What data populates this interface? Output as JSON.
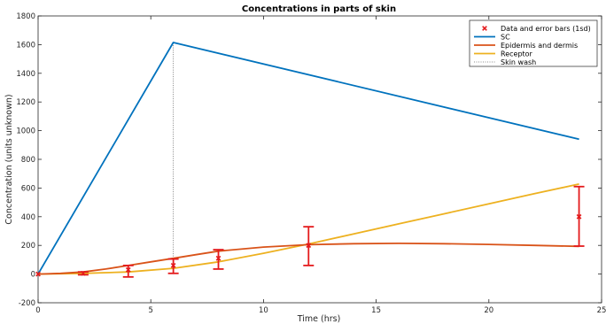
{
  "chart_data": {
    "type": "line",
    "title": "Concentrations in parts of skin",
    "xlabel": "Time (hrs)",
    "ylabel": "Concentration (units unknown)",
    "xlim": [
      0,
      25
    ],
    "ylim": [
      -200,
      1800
    ],
    "xticks": [
      0,
      5,
      10,
      15,
      20,
      25
    ],
    "yticks": [
      -200,
      0,
      200,
      400,
      600,
      800,
      1000,
      1200,
      1400,
      1600,
      1800
    ],
    "grid": false,
    "legend_position": "top-right",
    "series": [
      {
        "name": "SC",
        "color": "#0072bd",
        "x": [
          0,
          6,
          24
        ],
        "y": [
          0,
          1615,
          940
        ]
      },
      {
        "name": "Epidermis and dermis",
        "color": "#d95319",
        "x": [
          0,
          1,
          2,
          3,
          4,
          5,
          6,
          7,
          8,
          10,
          12,
          14,
          16,
          18,
          20,
          22,
          24
        ],
        "y": [
          0,
          5,
          15,
          35,
          60,
          85,
          110,
          135,
          160,
          188,
          205,
          212,
          214,
          212,
          207,
          200,
          193
        ]
      },
      {
        "name": "Receptor",
        "color": "#edb120",
        "x": [
          0,
          2,
          4,
          6,
          8,
          10,
          12,
          14,
          16,
          18,
          20,
          22,
          24
        ],
        "y": [
          0,
          5,
          15,
          40,
          85,
          145,
          210,
          280,
          350,
          420,
          490,
          560,
          628
        ]
      },
      {
        "name": "Skin wash",
        "color": "#666666",
        "style": "dotted",
        "x": [
          6,
          6
        ],
        "y": [
          0,
          1615
        ]
      }
    ],
    "data_points": {
      "name": "Data and error bars (1sd)",
      "color": "#e41a1c",
      "points": [
        {
          "x": 0,
          "y": 0,
          "low": 0,
          "high": 0
        },
        {
          "x": 2,
          "y": 5,
          "low": -5,
          "high": 15
        },
        {
          "x": 4,
          "y": 30,
          "low": -20,
          "high": 60
        },
        {
          "x": 6,
          "y": 60,
          "low": 5,
          "high": 105
        },
        {
          "x": 8,
          "y": 110,
          "low": 35,
          "high": 170
        },
        {
          "x": 12,
          "y": 200,
          "low": 60,
          "high": 330
        },
        {
          "x": 24,
          "y": 400,
          "low": 195,
          "high": 610
        }
      ]
    }
  }
}
